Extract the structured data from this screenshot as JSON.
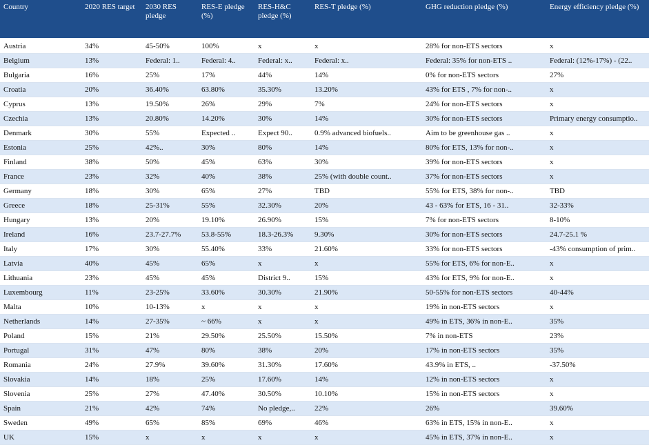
{
  "table": {
    "headers": [
      "Country",
      "2020 RES target",
      "2030 RES pledge",
      "RES-E pledge (%)",
      "RES-H&C pledge (%)",
      "RES-T pledge (%)",
      "GHG reduction pledge (%)",
      "Energy efficiency pledge (%)"
    ],
    "rows": [
      [
        "Austria",
        "34%",
        "45-50%",
        "100%",
        "x",
        "x",
        "28% for non-ETS sectors",
        "x"
      ],
      [
        "Belgium",
        "13%",
        "Federal: 1..",
        "Federal: 4..",
        "Federal: x..",
        "Federal: x..",
        "Federal: 35% for non-ETS ..",
        "Federal: (12%-17%) - (22.."
      ],
      [
        "Bulgaria",
        "16%",
        "25%",
        "17%",
        "44%",
        "14%",
        "0% for non-ETS sectors",
        "27%"
      ],
      [
        "Croatia",
        "20%",
        "36.40%",
        "63.80%",
        "35.30%",
        "13.20%",
        "43% for ETS , 7% for non-..",
        "x"
      ],
      [
        "Cyprus",
        "13%",
        "19.50%",
        "26%",
        "29%",
        "7%",
        "24% for non-ETS sectors",
        "x"
      ],
      [
        "Czechia",
        "13%",
        "20.80%",
        "14.20%",
        "30%",
        "14%",
        "30% for non-ETS sectors",
        "Primary energy consumptio.."
      ],
      [
        "Denmark",
        "30%",
        "55%",
        "Expected ..",
        "Expect 90..",
        "0.9% advanced biofuels..",
        "Aim to be greenhouse gas ..",
        "x"
      ],
      [
        "Estonia",
        "25%",
        "42%..",
        "30%",
        "80%",
        "14%",
        "80% for ETS, 13% for non-..",
        "x"
      ],
      [
        "Finland",
        "38%",
        "50%",
        "45%",
        "63%",
        "30%",
        "39% for non-ETS sectors",
        "x"
      ],
      [
        "France",
        "23%",
        "32%",
        "40%",
        "38%",
        "25% (with double count..",
        "37% for non-ETS sectors",
        "x"
      ],
      [
        "Germany",
        "18%",
        "30%",
        "65%",
        "27%",
        "TBD",
        "55% for ETS, 38% for non-..",
        "TBD"
      ],
      [
        "Greece",
        "18%",
        "25-31%",
        "55%",
        "32.30%",
        "20%",
        "43 - 63% for ETS, 16 - 31..",
        "32-33%"
      ],
      [
        "Hungary",
        "13%",
        "20%",
        "19.10%",
        "26.90%",
        "15%",
        "7% for non-ETS sectors",
        "8-10%"
      ],
      [
        "Ireland",
        "16%",
        "23.7-27.7%",
        "53.8-55%",
        "18.3-26.3%",
        "9.30%",
        "30% for non-ETS sectors",
        "24.7-25.1 %"
      ],
      [
        "Italy",
        "17%",
        "30%",
        "55.40%",
        "33%",
        "21.60%",
        "33% for non-ETS sectors",
        " -43% consumption of prim.."
      ],
      [
        "Latvia",
        "40%",
        "45%",
        "65%",
        "x",
        "x",
        "55% for ETS, 6% for non-E..",
        "x"
      ],
      [
        "Lithuania",
        "23%",
        "45%",
        "45%",
        "District  9..",
        "15%",
        "43% for ETS, 9% for non-E..",
        "x"
      ],
      [
        "Luxembourg",
        "11%",
        "23-25%",
        "33.60%",
        "30.30%",
        "21.90%",
        "50-55% for non-ETS sectors",
        "40-44%"
      ],
      [
        "Malta",
        "10%",
        "10-13%",
        "x",
        "x",
        "x",
        "19% in non-ETS sectors",
        "x"
      ],
      [
        "Netherlands",
        "14%",
        "27-35%",
        "~ 66%",
        "x",
        "x",
        "49% in ETS, 36% in non-E..",
        "35%"
      ],
      [
        "Poland",
        "15%",
        "21%",
        "29.50%",
        "25.50%",
        "15.50%",
        "7% in non-ETS",
        "23%"
      ],
      [
        "Portugal",
        "31%",
        "47%",
        "80%",
        "38%",
        "20%",
        "17% in non-ETS sectors",
        "35%"
      ],
      [
        "Romania",
        "24%",
        "27.9%",
        "39.60%",
        "31.30%",
        "17.60%",
        "43.9% in ETS, ..",
        "-37.50%"
      ],
      [
        "Slovakia",
        "14%",
        "18%",
        "25%",
        "17.60%",
        "14%",
        "12% in non-ETS sectors",
        "x"
      ],
      [
        "Slovenia",
        "25%",
        "27%",
        "47.40%",
        "30.50%",
        "10.10%",
        "15% in non-ETS sectors",
        "x"
      ],
      [
        "Spain",
        "21%",
        "42%",
        "74%",
        "No pledge,..",
        "22%",
        "26%",
        "39.60%"
      ],
      [
        "Sweden",
        "49%",
        "65%",
        "85%",
        "69%",
        "46%",
        "63% in ETS, 15% in non-E..",
        "x"
      ],
      [
        "UK",
        "15%",
        "x",
        "x",
        "x",
        "x",
        "45% in ETS, 37% in non-E..",
        "x"
      ]
    ]
  }
}
